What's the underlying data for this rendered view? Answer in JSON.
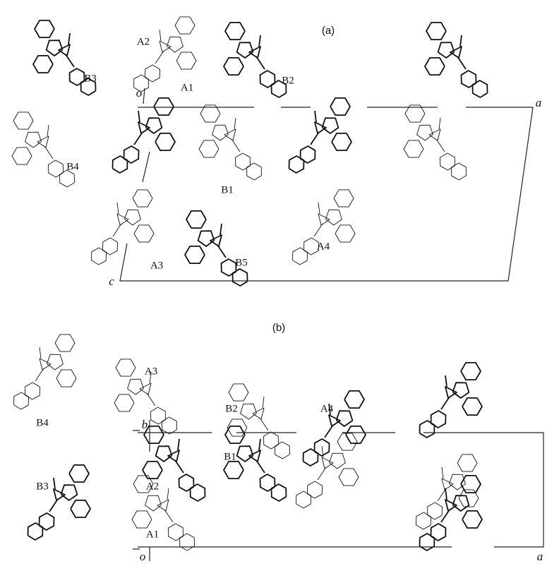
{
  "panels": [
    {
      "title": "(a)",
      "labels": [
        "A2",
        "A1",
        "B3",
        "B2",
        "B4",
        "B1",
        "A3",
        "A4",
        "B5"
      ],
      "axes": [
        "o",
        "a",
        "c"
      ]
    },
    {
      "title": "(b)",
      "labels": [
        "A3",
        "B4",
        "B2",
        "A4",
        "B3",
        "A2",
        "B1",
        "A1"
      ],
      "axes": [
        "b",
        "o",
        "a"
      ]
    }
  ]
}
